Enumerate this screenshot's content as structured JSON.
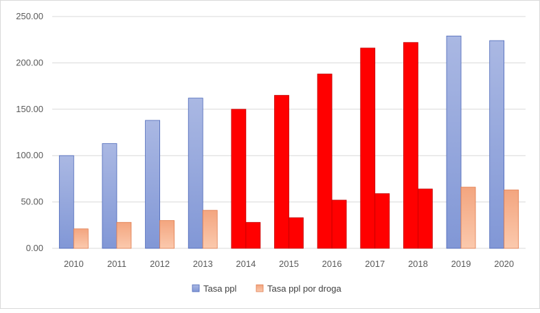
{
  "chart_data": {
    "type": "bar",
    "title": "",
    "xlabel": "",
    "ylabel": "",
    "ylim": [
      0,
      250
    ],
    "y_ticks": [
      "0.00",
      "50.00",
      "100.00",
      "150.00",
      "200.00",
      "250.00"
    ],
    "grid": true,
    "legend_position": "bottom",
    "categories": [
      "2010",
      "2011",
      "2012",
      "2013",
      "2014",
      "2015",
      "2016",
      "2017",
      "2018",
      "2019",
      "2020"
    ],
    "series": [
      {
        "name": "Tasa ppl",
        "values": [
          100,
          113,
          138,
          162,
          150,
          165,
          188,
          216,
          222,
          229,
          224
        ],
        "color": "#8fa3d9",
        "highlight_color": "#ff0000",
        "highlight_indices": [
          4,
          5,
          6,
          7,
          8
        ]
      },
      {
        "name": "Tasa ppl por droga",
        "values": [
          21,
          28,
          30,
          41,
          28,
          33,
          52,
          59,
          64,
          66,
          63
        ],
        "color": "#f7b08c",
        "highlight_color": "#ff0000",
        "highlight_indices": [
          4,
          5,
          6,
          7,
          8
        ]
      }
    ]
  }
}
